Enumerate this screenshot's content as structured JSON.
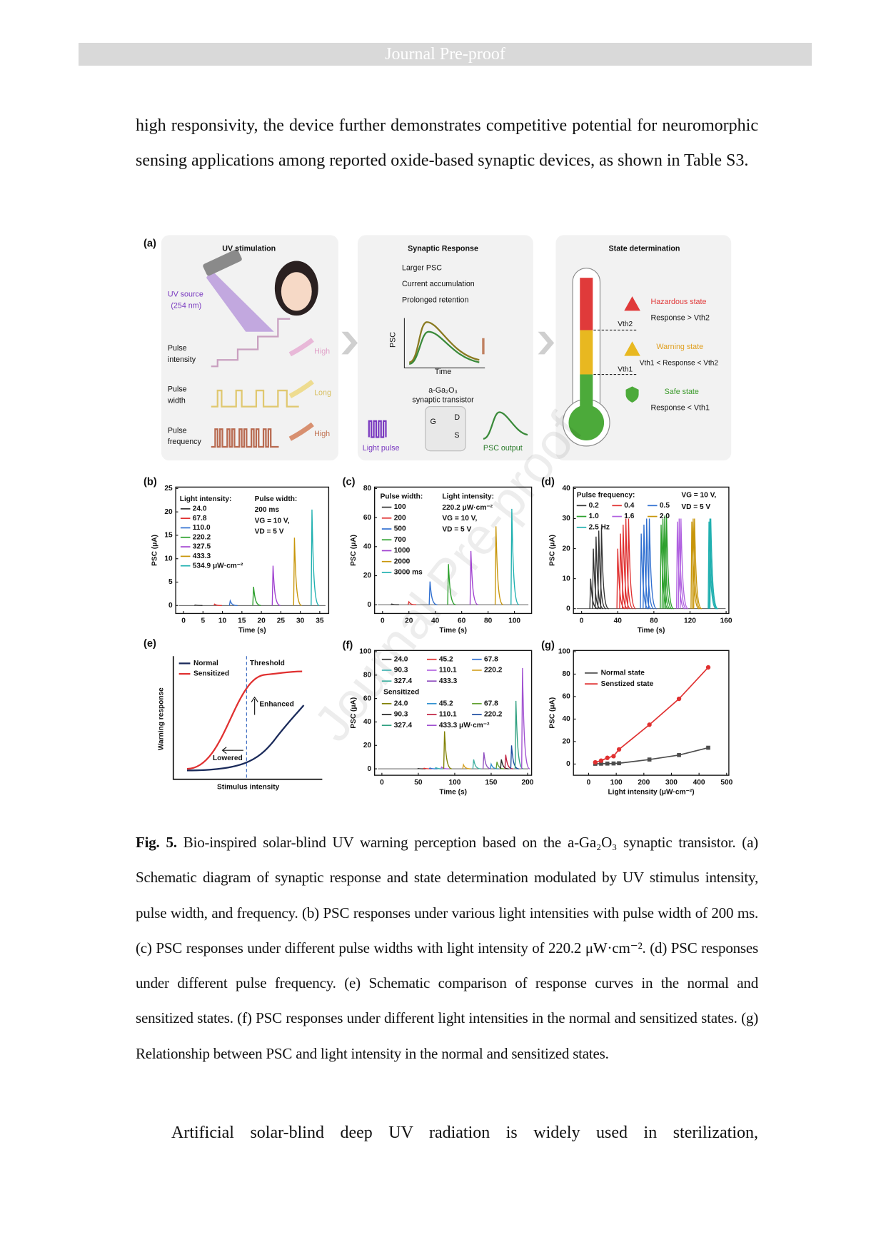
{
  "header": {
    "title": "Journal Pre-proof"
  },
  "paragraph1": "high responsivity, the device further demonstrates competitive potential for neuromorphic sensing applications among reported oxide-based synaptic devices, as shown in Table S3.",
  "figure": {
    "watermark": "Journal Pre-proof",
    "a": {
      "label": "(a)",
      "uv_title": "UV stimulation",
      "uv_source": [
        "UV source",
        "(254 nm)"
      ],
      "pulse_intensity": [
        "Pulse",
        "intensity"
      ],
      "intensity_arrow": "High",
      "pulse_width": [
        "Pulse",
        "width"
      ],
      "width_arrow": "Long",
      "pulse_frequency": [
        "Pulse",
        "frequency"
      ],
      "frequency_arrow": "High",
      "synaptic_title": "Synaptic Response",
      "bullets": [
        "Larger PSC",
        "Current accumulation",
        "Prolonged retention"
      ],
      "psc_axis": "PSC",
      "time_axis": "Time",
      "transistor": [
        "a-Ga₂O₃",
        "synaptic transistor"
      ],
      "light_pulse": "Light pulse",
      "psc_output": "PSC output",
      "terminals": [
        "G",
        "D",
        "S"
      ],
      "state_title": "State determination",
      "hazardous": "Hazardous state",
      "hazardous_rule": "Response > Vth2",
      "warning": "Warning state",
      "warning_rule": "Vth1 < Response < Vth2",
      "safe": "Safe state",
      "safe_rule": "Response < Vth1",
      "vth2": "Vth2",
      "vth1": "Vth1"
    },
    "b": {
      "label": "(b)",
      "xlabel": "Time (s)",
      "ylabel": "PSC (μA)",
      "xlim": [
        -2,
        37.3
      ],
      "ylim": [
        -1.7,
        25.3
      ],
      "xticks": [
        0,
        5,
        10,
        15,
        20,
        25,
        30,
        35
      ],
      "yticks": [
        0,
        5,
        10,
        15,
        20,
        25
      ],
      "legend_title": "Light intensity:",
      "notes": [
        "Pulse width:",
        "200 ms",
        "VG = 10 V,",
        "VD = 5 V"
      ],
      "series": [
        {
          "name": "24.0",
          "color": "#333333",
          "x": [
            3
          ],
          "y": [
            0.1
          ]
        },
        {
          "name": "67.8",
          "color": "#e03030",
          "x": [
            8
          ],
          "y": [
            0.3
          ]
        },
        {
          "name": "110.0",
          "color": "#2f6fd0",
          "x": [
            12
          ],
          "y": [
            1
          ]
        },
        {
          "name": "220.2",
          "color": "#2ca02c",
          "x": [
            18
          ],
          "y": [
            4
          ]
        },
        {
          "name": "327.5",
          "color": "#a040d0",
          "x": [
            23
          ],
          "y": [
            8.5
          ]
        },
        {
          "name": "433.3",
          "color": "#c8960a",
          "x": [
            28.5
          ],
          "y": [
            14.5
          ]
        },
        {
          "name": "534.9 μW·cm⁻²",
          "color": "#20b0b0",
          "x": [
            33
          ],
          "y": [
            20.5
          ]
        }
      ]
    },
    "c": {
      "label": "(c)",
      "xlabel": "Time (s)",
      "ylabel": "PSC (μA)",
      "xlim": [
        -6,
        113
      ],
      "ylim": [
        -6,
        81
      ],
      "xticks": [
        0,
        20,
        40,
        60,
        80,
        100
      ],
      "yticks": [
        0,
        20,
        40,
        60,
        80
      ],
      "legend_title": "Pulse width:",
      "notes": [
        "Light intensity:",
        "220.2 μW·cm⁻²",
        "VG = 10 V,",
        "VD = 5 V"
      ],
      "series": [
        {
          "name": "100",
          "color": "#333333",
          "x": [
            7
          ],
          "y": [
            0.5
          ]
        },
        {
          "name": "200",
          "color": "#e03030",
          "x": [
            20
          ],
          "y": [
            2
          ]
        },
        {
          "name": "500",
          "color": "#2f6fd0",
          "x": [
            36
          ],
          "y": [
            16
          ]
        },
        {
          "name": "700",
          "color": "#2ca02c",
          "x": [
            50
          ],
          "y": [
            28
          ]
        },
        {
          "name": "1000",
          "color": "#a040d0",
          "x": [
            67
          ],
          "y": [
            37
          ]
        },
        {
          "name": "2000",
          "color": "#c8960a",
          "x": [
            86
          ],
          "y": [
            54
          ]
        },
        {
          "name": "3000 ms",
          "color": "#20b0b0",
          "x": [
            98
          ],
          "y": [
            66
          ]
        }
      ]
    },
    "d": {
      "label": "(d)",
      "xlabel": "Time (s)",
      "ylabel": "PSC (μA)",
      "xlim": [
        -9,
        163
      ],
      "ylim": [
        -1.6,
        40.5
      ],
      "xticks": [
        0,
        40,
        80,
        120,
        160
      ],
      "yticks": [
        0,
        10,
        20,
        30,
        40
      ],
      "legend_title": "Pulse frequency:",
      "notes": [
        "VG = 10 V,",
        "VD = 5 V"
      ],
      "series": [
        {
          "name": "0.2",
          "color": "#333333",
          "x": [
            10,
            13,
            16,
            19,
            22
          ],
          "y": [
            10,
            20,
            24,
            26,
            27
          ]
        },
        {
          "name": "0.4",
          "color": "#e03030",
          "x": [
            40,
            43,
            46,
            49,
            52
          ],
          "y": [
            20,
            25,
            28,
            30,
            30
          ]
        },
        {
          "name": "0.5",
          "color": "#2f6fd0",
          "x": [
            66,
            69,
            72,
            75
          ],
          "y": [
            25,
            28,
            30,
            30
          ]
        },
        {
          "name": "1.0",
          "color": "#2ca02c",
          "x": [
            88,
            90,
            92,
            94
          ],
          "y": [
            28,
            30,
            31,
            31
          ]
        },
        {
          "name": "1.6",
          "color": "#b060e0",
          "x": [
            106,
            108,
            110
          ],
          "y": [
            29,
            30,
            30
          ]
        },
        {
          "name": "2.0",
          "color": "#c8960a",
          "x": [
            122,
            123.5,
            125
          ],
          "y": [
            29,
            30,
            30
          ]
        },
        {
          "name": "2.5 Hz",
          "color": "#20b0b0",
          "x": [
            141,
            142,
            143
          ],
          "y": [
            29,
            30,
            30
          ]
        }
      ]
    },
    "e": {
      "label": "(e)",
      "normal": "Normal",
      "sensitized": "Sensitized",
      "threshold": "Threshold",
      "enhanced": "Enhanced",
      "lowered": "Lowered",
      "ylabel": "Warning response",
      "xlabel": "Stimulus intensity"
    },
    "f": {
      "label": "(f)",
      "xlabel": "Time (s)",
      "ylabel": "PSC (μA)",
      "xlim": [
        -10,
        205.5
      ],
      "ylim": [
        -5.5,
        101
      ],
      "xticks": [
        0,
        50,
        100,
        150,
        200
      ],
      "yticks": [
        0,
        20,
        40,
        60,
        80,
        100
      ],
      "group_label": "Sensitized",
      "series": [
        {
          "name": "24.0",
          "color": "#333333",
          "x": [
            50
          ],
          "y": [
            0.3
          ]
        },
        {
          "name": "45.2",
          "color": "#e03030",
          "x": [
            58
          ],
          "y": [
            0.5
          ]
        },
        {
          "name": "67.8",
          "color": "#2f6fd0",
          "x": [
            66
          ],
          "y": [
            0.7
          ]
        },
        {
          "name": "90.3",
          "color": "#3bb0b0",
          "x": [
            74
          ],
          "y": [
            1
          ]
        },
        {
          "name": "110.1",
          "color": "#b060e0",
          "x": [
            82
          ],
          "y": [
            1.5
          ]
        },
        {
          "name": "220.2",
          "color": "#d4a020",
          "x": [
            112
          ],
          "y": [
            3.5
          ]
        },
        {
          "name": "327.4",
          "color": "#40b0a0",
          "x": [
            126
          ],
          "y": [
            8
          ]
        },
        {
          "name": "433.3",
          "color": "#9050c0",
          "x": [
            140
          ],
          "y": [
            14
          ]
        },
        {
          "name": "24.0",
          "color": "#808000",
          "x": [
            86
          ],
          "y": [
            32
          ]
        },
        {
          "name": "45.2",
          "color": "#3090d0",
          "x": [
            150
          ],
          "y": [
            4
          ]
        },
        {
          "name": "67.8",
          "color": "#60a030",
          "x": [
            158
          ],
          "y": [
            6
          ]
        },
        {
          "name": "90.3",
          "color": "#222222",
          "x": [
            164
          ],
          "y": [
            8
          ]
        },
        {
          "name": "110.1",
          "color": "#c02040",
          "x": [
            170
          ],
          "y": [
            12
          ]
        },
        {
          "name": "220.2",
          "color": "#1a4aa0",
          "x": [
            178
          ],
          "y": [
            20
          ]
        },
        {
          "name": "327.4",
          "color": "#30a080",
          "x": [
            184
          ],
          "y": [
            58
          ]
        },
        {
          "name": "433.3 μW·cm⁻²",
          "color": "#a050d0",
          "x": [
            193
          ],
          "y": [
            86
          ]
        }
      ]
    },
    "g": {
      "label": "(g)",
      "xlabel": "Light intensity (μW·cm⁻²)",
      "ylabel": "PSC (μA)",
      "xlim": [
        -55,
        508
      ],
      "ylim": [
        -10,
        101
      ],
      "xticks": [
        0,
        100,
        200,
        300,
        400,
        500
      ],
      "yticks": [
        0,
        20,
        40,
        60,
        80,
        100
      ],
      "x": [
        24.0,
        45.2,
        67.8,
        90.3,
        110.1,
        220.2,
        327.4,
        433.3
      ],
      "series": [
        {
          "name": "Normal state",
          "color": "#4d4d4d",
          "marker": "square",
          "values": [
            0.2,
            0.3,
            0.4,
            0.5,
            0.7,
            4,
            8,
            14.5
          ]
        },
        {
          "name": "Senstized state",
          "color": "#e03030",
          "marker": "circle",
          "values": [
            1.5,
            3,
            5.5,
            7,
            13,
            35,
            58,
            86
          ]
        }
      ]
    }
  },
  "caption": {
    "label": "Fig. 5.",
    "text": "Bio-inspired solar-blind UV warning perception based on the a-Ga₂O₃ synaptic transistor. (a) Schematic diagram of synaptic response and state determination modulated by UV stimulus intensity, pulse width, and frequency. (b) PSC responses under various light intensities with pulse width of 200 ms. (c) PSC responses under different pulse widths with light intensity of 220.2 μW·cm⁻². (d) PSC responses under different pulse frequency. (e) Schematic comparison of response curves in the normal and sensitized states. (f) PSC responses under different light intensities in the normal and sensitized states. (g) Relationship between PSC and light intensity in the normal and sensitized states."
  },
  "paragraph2": "Artificial solar-blind deep UV radiation is widely used in sterilization,"
}
